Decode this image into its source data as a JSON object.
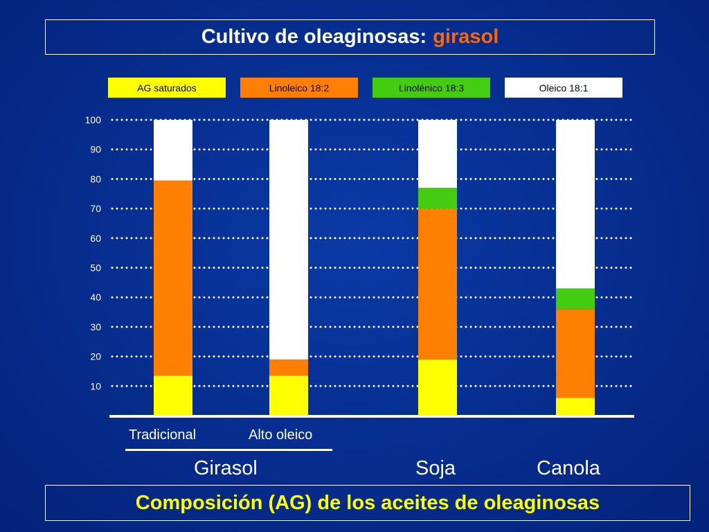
{
  "title": {
    "main": "Cultivo de oleaginosas:",
    "highlight": "girasol"
  },
  "footer": "Composición (AG) de los aceites de oleaginosas",
  "colors": {
    "background": "#072f92",
    "highlight": "#ff6600",
    "footer_text": "#ffff00",
    "saturados": "#ffff00",
    "linoleico": "#ff7f00",
    "linolenico": "#44cc11",
    "oleico": "#ffffff"
  },
  "chart_data": {
    "type": "bar",
    "stacked": true,
    "title": "",
    "xlabel": "",
    "ylabel": "",
    "ylim": [
      0,
      100
    ],
    "yticks": [
      10,
      20,
      30,
      40,
      50,
      60,
      70,
      80,
      90,
      100
    ],
    "grid": true,
    "legend_position": "top",
    "categories": [
      "Tradicional",
      "Alto oleico",
      "Soja",
      "Canola"
    ],
    "category_labels": [
      "Tradicional",
      "Alto oleico",
      "",
      ""
    ],
    "group_labels": [
      "Girasol",
      "Soja",
      "Canola"
    ],
    "series": [
      {
        "name": "AG saturados",
        "color": "#ffff00",
        "values": [
          13.5,
          13.5,
          19,
          6
        ]
      },
      {
        "name": "Linoleico 18:2",
        "color": "#ff7f00",
        "values": [
          66,
          5.5,
          51,
          30
        ]
      },
      {
        "name": "Linolénico 18:3",
        "color": "#44cc11",
        "values": [
          0,
          0,
          7,
          7
        ]
      },
      {
        "name": "Oleico 18:1",
        "color": "#ffffff",
        "values": [
          20.5,
          81,
          23,
          57
        ]
      }
    ]
  }
}
